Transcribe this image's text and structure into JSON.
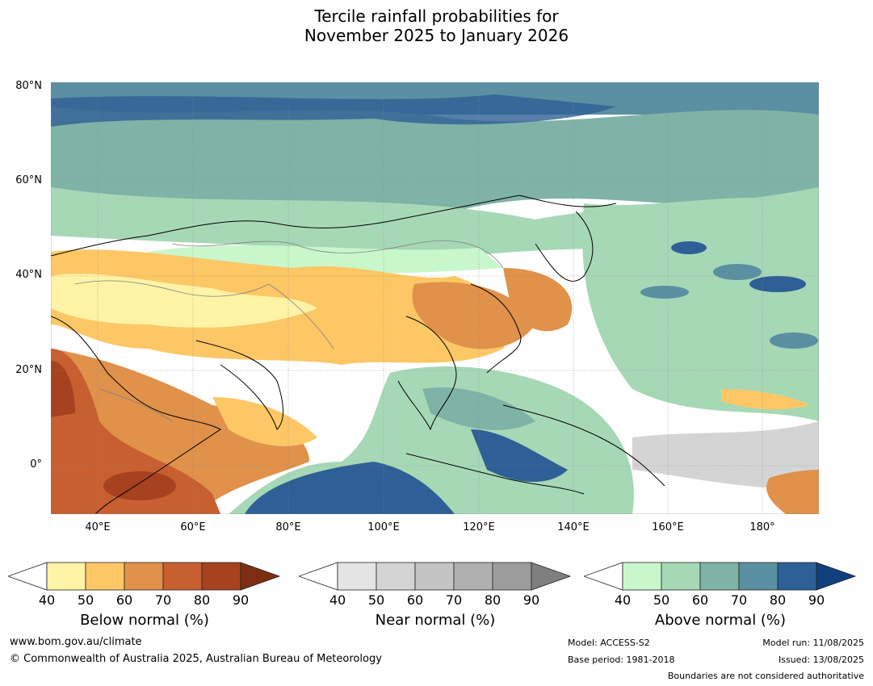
{
  "title_line1": "Tercile rainfall probabilities for",
  "title_line2": "November 2025 to January 2026",
  "lat_labels": [
    "80°N",
    "60°N",
    "40°N",
    "20°N",
    "0°"
  ],
  "lon_labels": [
    "40°E",
    "60°E",
    "80°E",
    "100°E",
    "120°E",
    "140°E",
    "160°E",
    "180°"
  ],
  "colorbars": [
    {
      "title": "Below normal (%)",
      "ticks": [
        "40",
        "50",
        "60",
        "70",
        "80",
        "90"
      ],
      "colors": [
        "#fff3a6",
        "#fdc766",
        "#e0914a",
        "#c85f31",
        "#a6421f",
        "#7d2e12"
      ]
    },
    {
      "title": "Near normal (%)",
      "ticks": [
        "40",
        "50",
        "60",
        "70",
        "80",
        "90"
      ],
      "colors": [
        "#e4e4e4",
        "#d4d4d4",
        "#c4c4c4",
        "#b0b0b0",
        "#9c9c9c",
        "#7f7f7f"
      ]
    },
    {
      "title": "Above normal (%)",
      "ticks": [
        "40",
        "50",
        "60",
        "70",
        "80",
        "90"
      ],
      "colors": [
        "#c8f7cb",
        "#a6d8b6",
        "#80b3a7",
        "#5b8fa2",
        "#2e5f96",
        "#0f3f7c"
      ]
    }
  ],
  "footer": {
    "url": "www.bom.gov.au/climate",
    "copyright": "© Commonwealth of Australia 2025, Australian Bureau of Meteorology",
    "model": "Model: ACCESS-S2",
    "base_period": "Base period: 1981-2018",
    "model_run": "Model run: 11/08/2025",
    "issued": "Issued: 13/08/2025",
    "disclaimer": "Boundaries are not considered authoritative"
  }
}
